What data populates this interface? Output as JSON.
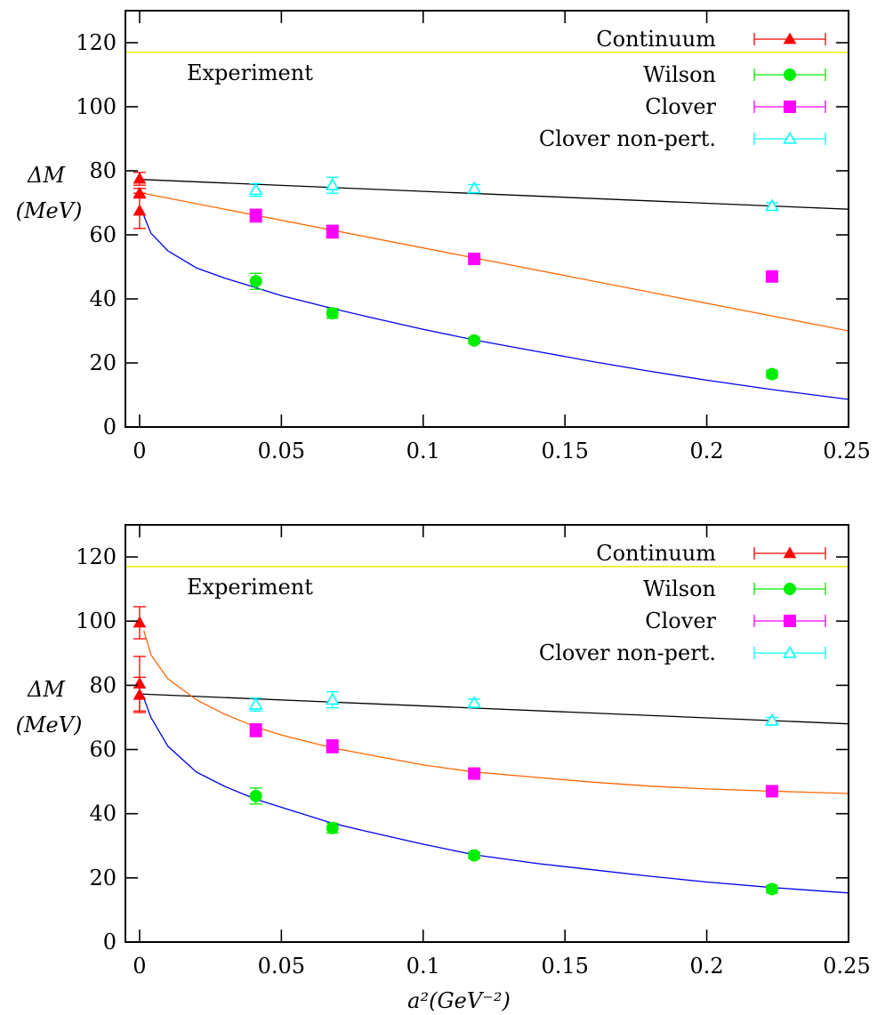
{
  "chart_data": [
    {
      "type": "scatter",
      "title": "",
      "xlabel": "",
      "ylabel": "ΔM",
      "ylabel_unit": "(MeV)",
      "xlim": [
        -0.005,
        0.25
      ],
      "ylim": [
        0,
        130
      ],
      "x_ticks": [
        0,
        0.05,
        0.1,
        0.15,
        0.2,
        0.25
      ],
      "x_tick_labels": [
        "0",
        "0.05",
        "0.1",
        "0.15",
        "0.2",
        "0.25"
      ],
      "y_ticks": [
        0,
        20,
        40,
        60,
        80,
        100,
        120
      ],
      "y_tick_labels": [
        "0",
        "20",
        "40",
        "60",
        "80",
        "100",
        "120"
      ],
      "grid": false,
      "legend_position": "top-right",
      "annotation": "Experiment",
      "experiment_value": 117,
      "colors": {
        "Continuum": "#ff0000",
        "Wilson": "#00ee00",
        "Clover": "#ff00ff",
        "Clover non-pert.": "#00ffff",
        "Experiment": "#eeee00"
      },
      "series": [
        {
          "name": "Continuum",
          "marker": "filled-triangle",
          "x": [
            0,
            0,
            0
          ],
          "y": [
            77.5,
            73,
            67.5
          ],
          "err": [
            2,
            1.5,
            5.5
          ]
        },
        {
          "name": "Wilson",
          "marker": "filled-circle",
          "x": [
            0.041,
            0.068,
            0.118,
            0.223
          ],
          "y": [
            45.5,
            35.5,
            27,
            16.5
          ],
          "err": [
            2.5,
            1.5,
            1,
            1.2
          ]
        },
        {
          "name": "Clover",
          "marker": "filled-square",
          "x": [
            0.041,
            0.068,
            0.118,
            0.223
          ],
          "y": [
            66,
            61,
            52.5,
            47
          ],
          "err": [
            2,
            2,
            1.5,
            1.5
          ]
        },
        {
          "name": "Clover non-pert.",
          "marker": "open-triangle",
          "x": [
            0.041,
            0.068,
            0.118,
            0.223
          ],
          "y": [
            74,
            75.5,
            74.5,
            69
          ],
          "err": [
            2,
            2.5,
            1.2,
            1
          ]
        }
      ],
      "fits": [
        {
          "color": "#000000",
          "x": [
            0,
            0.25
          ],
          "y": [
            77.3,
            68
          ]
        },
        {
          "color": "#ff6600",
          "x": [
            0,
            0.25
          ],
          "y": [
            73.2,
            30
          ]
        },
        {
          "color": "#0000ee",
          "x": [
            0.0015,
            0.004,
            0.01,
            0.02,
            0.03,
            0.041,
            0.05,
            0.068,
            0.08,
            0.1,
            0.118,
            0.14,
            0.16,
            0.18,
            0.2,
            0.223,
            0.25
          ],
          "y": [
            66,
            60.5,
            55,
            49.7,
            46.5,
            43.5,
            41,
            37,
            34.5,
            30.5,
            27.2,
            23.6,
            20.4,
            17.4,
            14.6,
            11.7,
            8.6
          ]
        }
      ]
    },
    {
      "type": "scatter",
      "title": "",
      "xlabel": "a²(GeV⁻²)",
      "ylabel": "ΔM",
      "ylabel_unit": "(MeV)",
      "xlim": [
        -0.005,
        0.25
      ],
      "ylim": [
        0,
        130
      ],
      "x_ticks": [
        0,
        0.05,
        0.1,
        0.15,
        0.2,
        0.25
      ],
      "x_tick_labels": [
        "0",
        "0.05",
        "0.1",
        "0.15",
        "0.2",
        "0.25"
      ],
      "y_ticks": [
        0,
        20,
        40,
        60,
        80,
        100,
        120
      ],
      "y_tick_labels": [
        "0",
        "20",
        "40",
        "60",
        "80",
        "100",
        "120"
      ],
      "grid": false,
      "legend_position": "top-right",
      "annotation": "Experiment",
      "experiment_value": 117,
      "colors": {
        "Continuum": "#ff0000",
        "Wilson": "#00ee00",
        "Clover": "#ff00ff",
        "Clover non-pert.": "#00ffff",
        "Experiment": "#eeee00"
      },
      "series": [
        {
          "name": "Continuum",
          "marker": "filled-triangle",
          "x": [
            0,
            0,
            0
          ],
          "y": [
            99.5,
            80.5,
            77
          ],
          "err": [
            5,
            8.5,
            5.5
          ]
        },
        {
          "name": "Wilson",
          "marker": "filled-circle",
          "x": [
            0.041,
            0.068,
            0.118,
            0.223
          ],
          "y": [
            45.5,
            35.5,
            27,
            16.5
          ],
          "err": [
            2.5,
            1.5,
            1,
            1.2
          ]
        },
        {
          "name": "Clover",
          "marker": "filled-square",
          "x": [
            0.041,
            0.068,
            0.118,
            0.223
          ],
          "y": [
            66,
            61,
            52.5,
            47
          ],
          "err": [
            2,
            2,
            1.5,
            1.5
          ]
        },
        {
          "name": "Clover non-pert.",
          "marker": "open-triangle",
          "x": [
            0.041,
            0.068,
            0.118,
            0.223
          ],
          "y": [
            74,
            75.5,
            74.5,
            69
          ],
          "err": [
            2,
            2.5,
            1.2,
            1
          ]
        }
      ],
      "fits": [
        {
          "color": "#000000",
          "x": [
            0,
            0.25
          ],
          "y": [
            77.3,
            68
          ]
        },
        {
          "color": "#ff6600",
          "x": [
            0.0015,
            0.004,
            0.01,
            0.02,
            0.03,
            0.041,
            0.05,
            0.068,
            0.08,
            0.1,
            0.118,
            0.14,
            0.16,
            0.18,
            0.2,
            0.223,
            0.25
          ],
          "y": [
            97,
            89.5,
            82,
            75.5,
            71,
            67,
            64.5,
            60.5,
            58.5,
            55.2,
            53,
            51.3,
            49.8,
            48.6,
            47.7,
            47,
            46.3
          ]
        },
        {
          "color": "#0000ee",
          "x": [
            0.0015,
            0.004,
            0.01,
            0.02,
            0.03,
            0.041,
            0.05,
            0.068,
            0.08,
            0.1,
            0.118,
            0.14,
            0.16,
            0.18,
            0.2,
            0.223,
            0.25
          ],
          "y": [
            76,
            70,
            61,
            53,
            48.5,
            44.5,
            42,
            37,
            34.5,
            30.5,
            27.2,
            24.5,
            22.5,
            20.5,
            18.7,
            17,
            15.3
          ]
        }
      ]
    }
  ]
}
